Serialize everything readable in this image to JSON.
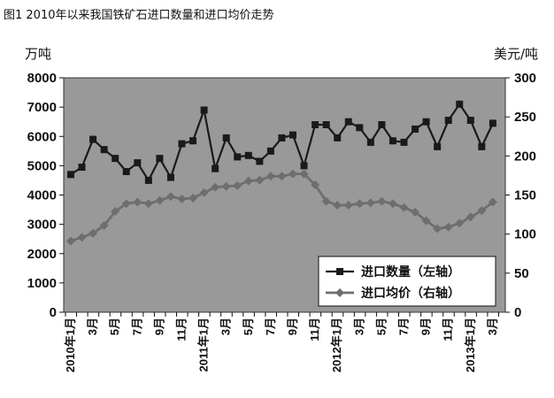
{
  "chart_data": {
    "type": "line",
    "title": "图1 2010年以来我国铁矿石进口数量和进口均价走势",
    "left_axis": {
      "unit": "万吨",
      "ylim": [
        0,
        8000
      ],
      "ticks": [
        "0",
        "1000",
        "2000",
        "3000",
        "4000",
        "5000",
        "6000",
        "7000",
        "8000"
      ]
    },
    "right_axis": {
      "unit": "美元/吨",
      "ylim": [
        0,
        300
      ],
      "ticks": [
        "0",
        "50",
        "100",
        "150",
        "200",
        "250",
        "300"
      ]
    },
    "x_labels": [
      {
        "index": 0,
        "label": "2010年1月"
      },
      {
        "index": 2,
        "label": "3月"
      },
      {
        "index": 4,
        "label": "5月"
      },
      {
        "index": 6,
        "label": "7月"
      },
      {
        "index": 8,
        "label": "9月"
      },
      {
        "index": 10,
        "label": "11月"
      },
      {
        "index": 12,
        "label": "2011年1月"
      },
      {
        "index": 14,
        "label": "3月"
      },
      {
        "index": 16,
        "label": "5月"
      },
      {
        "index": 18,
        "label": "7月"
      },
      {
        "index": 20,
        "label": "9月"
      },
      {
        "index": 22,
        "label": "11月"
      },
      {
        "index": 24,
        "label": "2012年1月"
      },
      {
        "index": 26,
        "label": "3月"
      },
      {
        "index": 28,
        "label": "5月"
      },
      {
        "index": 30,
        "label": "7月"
      },
      {
        "index": 32,
        "label": "9月"
      },
      {
        "index": 34,
        "label": "11月"
      },
      {
        "index": 36,
        "label": "2013年1月"
      },
      {
        "index": 38,
        "label": "3月"
      }
    ],
    "grid": false,
    "series": [
      {
        "name": "进口数量（左轴）",
        "axis": "left",
        "marker": "square",
        "values": [
          4700,
          4950,
          5900,
          5550,
          5250,
          4800,
          5100,
          4500,
          5250,
          4600,
          5750,
          5850,
          6900,
          4900,
          5950,
          5300,
          5350,
          5150,
          5500,
          5950,
          6050,
          5000,
          6400,
          6400,
          5950,
          6500,
          6300,
          5800,
          6400,
          5850,
          5800,
          6250,
          6500,
          5650,
          6550,
          7100,
          6550,
          5650,
          6450
        ]
      },
      {
        "name": "进口均价（右轴）",
        "axis": "right",
        "marker": "diamond",
        "values": [
          91,
          96,
          101,
          111,
          129,
          139,
          141,
          139,
          143,
          148,
          145,
          146,
          153,
          160,
          161,
          162,
          168,
          169,
          174,
          174,
          177,
          177,
          163,
          142,
          137,
          137,
          139,
          140,
          142,
          139,
          134,
          128,
          117,
          107,
          109,
          114,
          122,
          130,
          141
        ]
      }
    ],
    "legend": {
      "position": "bottom-right",
      "items": [
        "进口数量（左轴）",
        "进口均价（右轴）"
      ]
    }
  }
}
